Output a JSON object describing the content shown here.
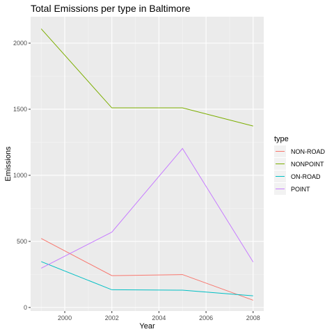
{
  "chart_data": {
    "type": "line",
    "title": "Total Emissions per type in Baltimore",
    "xlabel": "Year",
    "ylabel": "Emissions",
    "x": [
      1999,
      2002,
      2005,
      2008
    ],
    "xlim": [
      1998.55,
      2008.45
    ],
    "ylim": [
      -27,
      2200
    ],
    "xticks": [
      2000,
      2002,
      2004,
      2006,
      2008
    ],
    "yticks": [
      0,
      500,
      1000,
      1500,
      2000
    ],
    "grid": true,
    "legend": {
      "title": "type",
      "placement": "right"
    },
    "series": [
      {
        "name": "NON-ROAD",
        "color": "#F8766D",
        "values": [
          522,
          241,
          249,
          55
        ]
      },
      {
        "name": "NONPOINT",
        "color": "#7CAE00",
        "values": [
          2108,
          1510,
          1510,
          1373
        ]
      },
      {
        "name": "ON-ROAD",
        "color": "#00BFC4",
        "values": [
          347,
          134,
          131,
          88
        ]
      },
      {
        "name": "POINT",
        "color": "#C77CFF",
        "values": [
          297,
          570,
          1203,
          344
        ]
      }
    ]
  }
}
